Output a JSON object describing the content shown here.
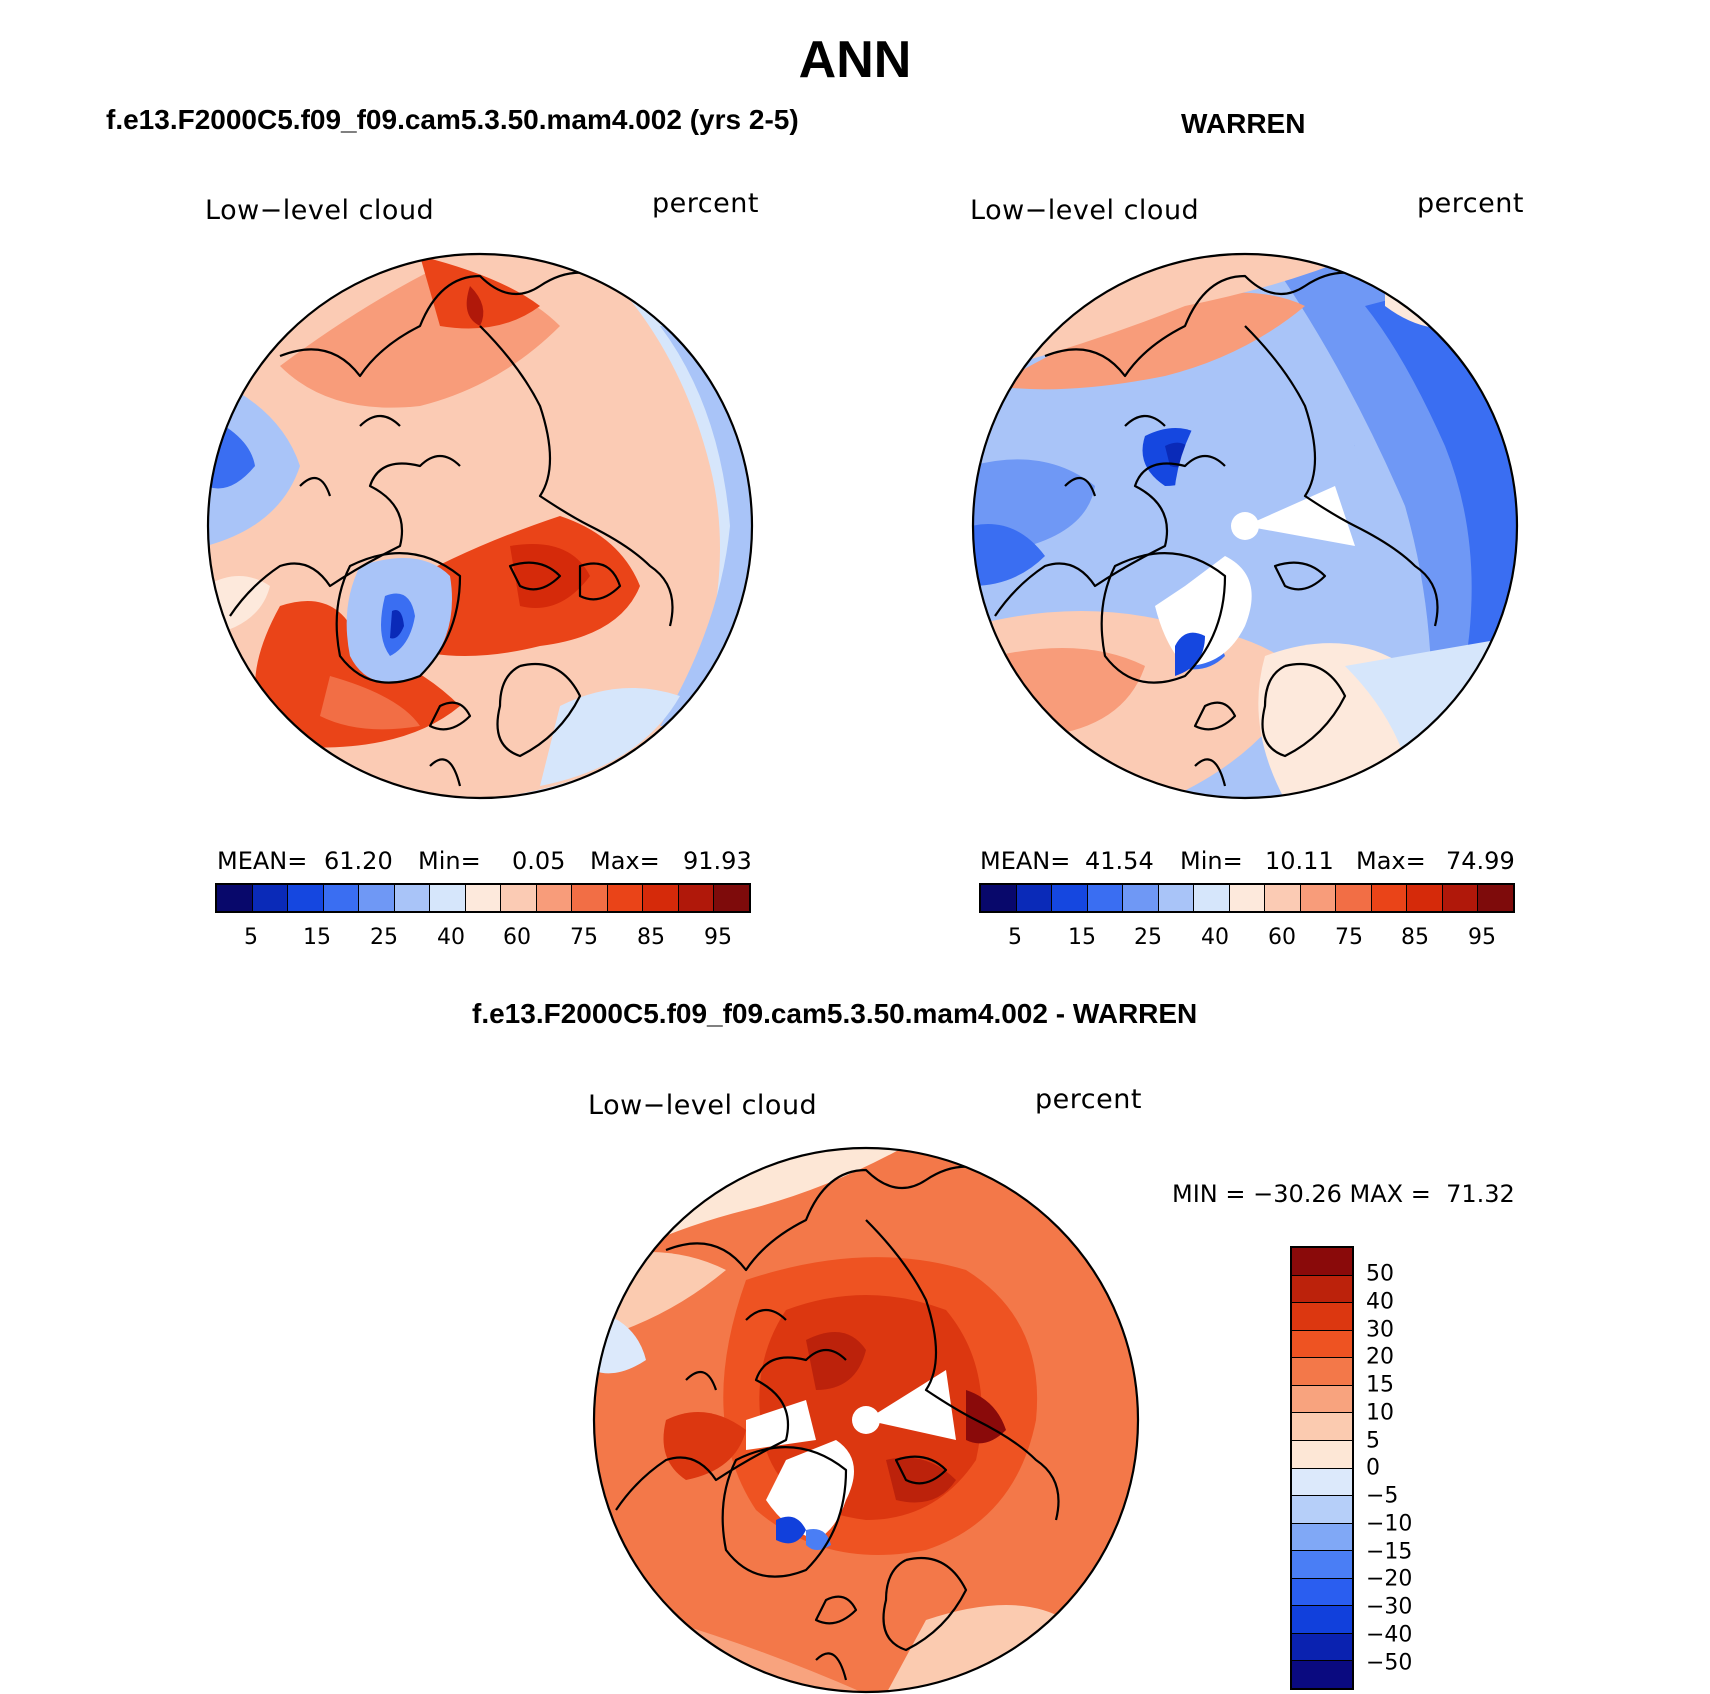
{
  "title": "ANN",
  "colors": {
    "abs_scale": [
      "#08086b",
      "#0a2ab8",
      "#1547e0",
      "#3a6ef2",
      "#6f98f5",
      "#a9c4f8",
      "#d6e6fb",
      "#fde9dc",
      "#fbcbb4",
      "#f89c7a",
      "#f26e45",
      "#ea4418",
      "#d52a0a",
      "#b0180a",
      "#7e0b0b"
    ],
    "diff_scale": [
      "#0a0a80",
      "#0a22b0",
      "#1140dc",
      "#2a5ef0",
      "#4a7ef5",
      "#80a8f6",
      "#b6cff9",
      "#dce9fb",
      "#fde7d6",
      "#fbcbb0",
      "#f8a37e",
      "#f37849",
      "#ee5322",
      "#dc3710",
      "#bc220b",
      "#8a0a0a"
    ]
  },
  "panels": {
    "model": {
      "title": "f.e13.F2000C5.f09_f09.cam5.3.50.mam4.002 (yrs 2-5)",
      "variable": "Low−level cloud",
      "units": "percent",
      "stats": {
        "mean_label": "MEAN=",
        "mean": "61.20",
        "min_label": "Min=",
        "min": "0.05",
        "max_label": "Max=",
        "max": "91.93"
      },
      "ticks": [
        "5",
        "15",
        "25",
        "40",
        "60",
        "75",
        "85",
        "95"
      ]
    },
    "obs": {
      "title": "WARREN",
      "variable": "Low−level cloud",
      "units": "percent",
      "stats": {
        "mean_label": "MEAN=",
        "mean": "41.54",
        "min_label": "Min=",
        "min": "10.11",
        "max_label": "Max=",
        "max": "74.99"
      },
      "ticks": [
        "5",
        "15",
        "25",
        "40",
        "60",
        "75",
        "85",
        "95"
      ]
    },
    "diff": {
      "title": "f.e13.F2000C5.f09_f09.cam5.3.50.mam4.002 - WARREN",
      "variable": "Low−level cloud",
      "units": "percent",
      "minmax": "MIN = −30.26 MAX =  71.32",
      "ticks": [
        "50",
        "40",
        "30",
        "20",
        "15",
        "10",
        "5",
        "0",
        "−5",
        "−10",
        "−15",
        "−20",
        "−30",
        "−40",
        "−50"
      ]
    }
  }
}
